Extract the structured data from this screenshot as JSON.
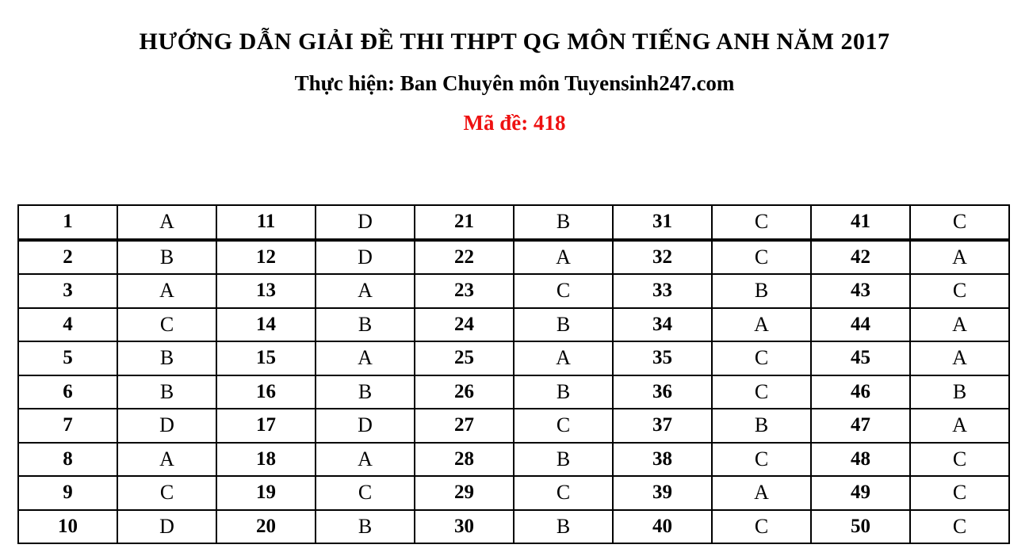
{
  "header": {
    "title": "HƯỚNG DẪN GIẢI ĐỀ THI THPT QG MÔN TIẾNG ANH NĂM 2017",
    "subtitle": "Thực hiện: Ban Chuyên môn Tuyensinh247.com",
    "exam_code": "Mã đề: 418",
    "exam_code_color": "#ee1111",
    "text_color": "#000000"
  },
  "answer_table": {
    "columns_per_row": [
      "question",
      "answer",
      "question",
      "answer",
      "question",
      "answer",
      "question",
      "answer",
      "question",
      "answer"
    ],
    "rows": [
      [
        "1",
        "A",
        "11",
        "D",
        "21",
        "B",
        "31",
        "C",
        "41",
        "C"
      ],
      [
        "2",
        "B",
        "12",
        "D",
        "22",
        "A",
        "32",
        "C",
        "42",
        "A"
      ],
      [
        "3",
        "A",
        "13",
        "A",
        "23",
        "C",
        "33",
        "B",
        "43",
        "C"
      ],
      [
        "4",
        "C",
        "14",
        "B",
        "24",
        "B",
        "34",
        "A",
        "44",
        "A"
      ],
      [
        "5",
        "B",
        "15",
        "A",
        "25",
        "A",
        "35",
        "C",
        "45",
        "A"
      ],
      [
        "6",
        "B",
        "16",
        "B",
        "26",
        "B",
        "36",
        "C",
        "46",
        "B"
      ],
      [
        "7",
        "D",
        "17",
        "D",
        "27",
        "C",
        "37",
        "B",
        "47",
        "A"
      ],
      [
        "8",
        "A",
        "18",
        "A",
        "28",
        "B",
        "38",
        "C",
        "48",
        "C"
      ],
      [
        "9",
        "C",
        "19",
        "C",
        "29",
        "C",
        "39",
        "A",
        "49",
        "C"
      ],
      [
        "10",
        "D",
        "20",
        "B",
        "30",
        "B",
        "40",
        "C",
        "50",
        "C"
      ]
    ]
  }
}
